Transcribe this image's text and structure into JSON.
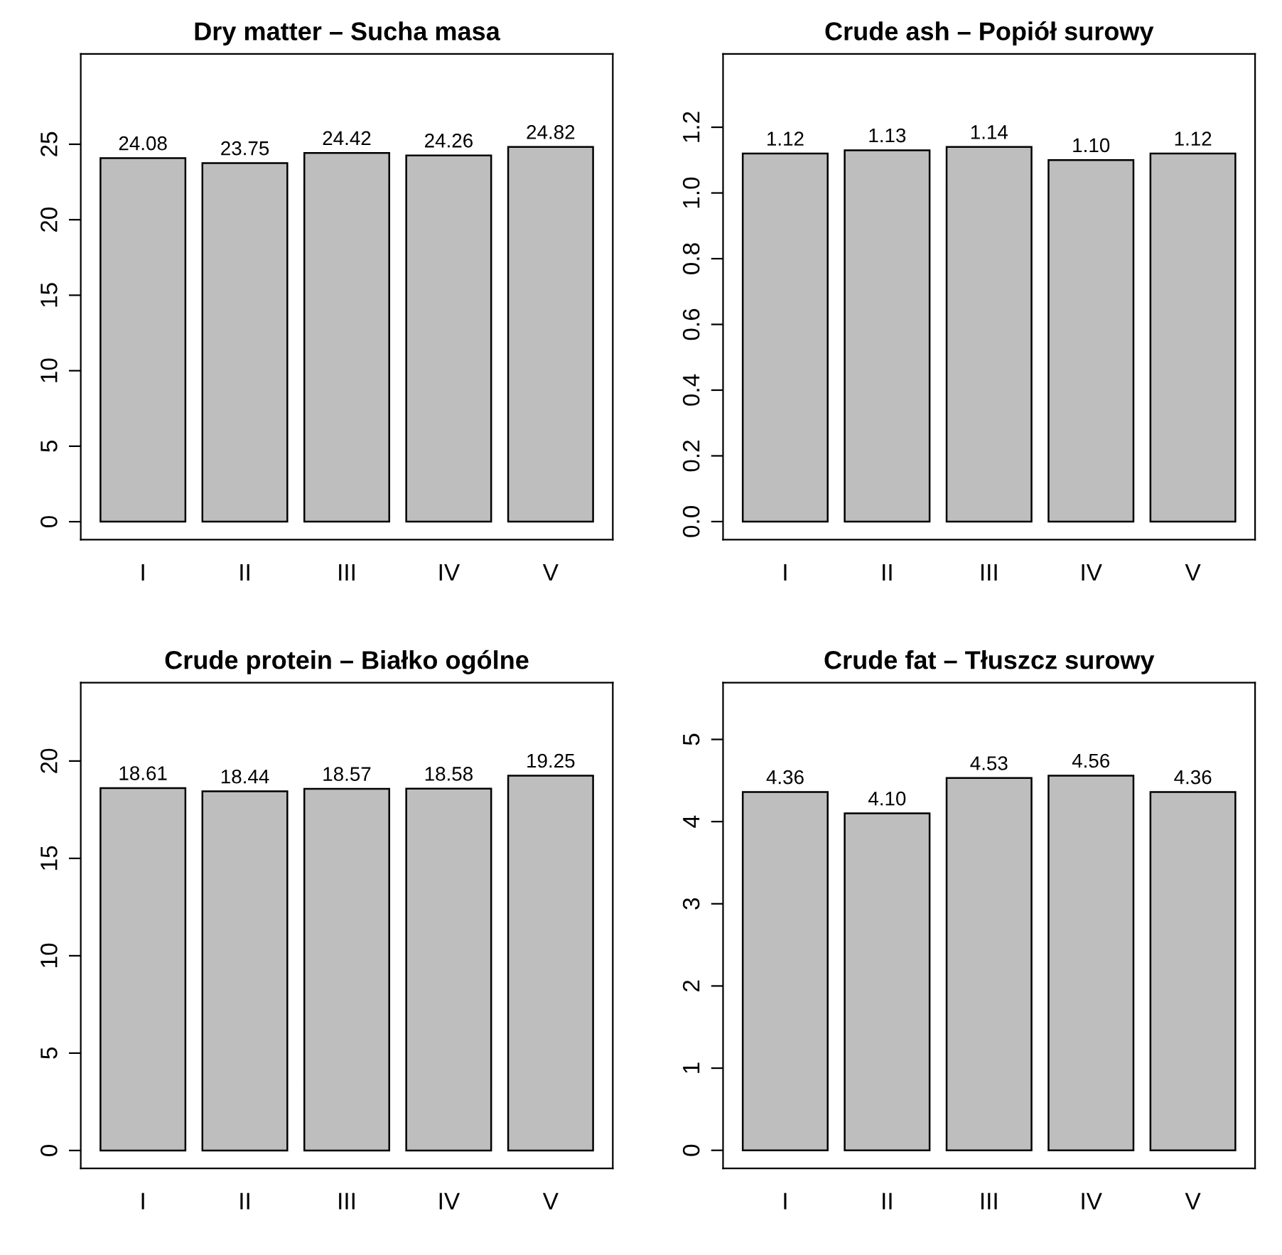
{
  "chart_data": [
    {
      "type": "bar",
      "title": "Dry matter – Sucha masa",
      "categories": [
        "I",
        "II",
        "III",
        "IV",
        "V"
      ],
      "values": [
        24.08,
        23.75,
        24.42,
        24.26,
        24.82
      ],
      "value_labels": [
        "24.08",
        "23.75",
        "24.42",
        "24.26",
        "24.82"
      ],
      "color": "#bebebe",
      "ylim": [
        -1.19,
        30.98
      ],
      "yticks": [
        0,
        5,
        10,
        15,
        20,
        25
      ],
      "grid": false,
      "legend": false
    },
    {
      "type": "bar",
      "title": "Crude ash – Popiół surowy",
      "categories": [
        "I",
        "II",
        "III",
        "IV",
        "V"
      ],
      "values": [
        1.12,
        1.13,
        1.14,
        1.1,
        1.12
      ],
      "value_labels": [
        "1.12",
        "1.13",
        "1.14",
        "1.10",
        "1.12"
      ],
      "color": "#bebebe",
      "ylim": [
        -0.055,
        1.423
      ],
      "yticks": [
        {
          "value": 0,
          "label": "0.0"
        },
        {
          "value": 0.2,
          "label": "0.2"
        },
        {
          "value": 0.4,
          "label": "0.4"
        },
        {
          "value": 0.6,
          "label": "0.6"
        },
        {
          "value": 0.8,
          "label": "0.8"
        },
        {
          "value": 1.0,
          "label": "1.0"
        },
        {
          "value": 1.2,
          "label": "1.2"
        }
      ],
      "grid": false,
      "legend": false
    },
    {
      "type": "bar",
      "title": "Crude protein – Białko ogólne",
      "categories": [
        "I",
        "II",
        "III",
        "IV",
        "V"
      ],
      "values": [
        18.61,
        18.44,
        18.57,
        18.58,
        19.25
      ],
      "value_labels": [
        "18.61",
        "18.44",
        "18.57",
        "18.58",
        "19.25"
      ],
      "color": "#bebebe",
      "ylim": [
        -0.92,
        24.02
      ],
      "yticks": [
        0,
        5,
        10,
        15,
        20
      ],
      "grid": false,
      "legend": false
    },
    {
      "type": "bar",
      "title": "Crude fat – Tłuszcz surowy",
      "categories": [
        "I",
        "II",
        "III",
        "IV",
        "V"
      ],
      "values": [
        4.36,
        4.1,
        4.53,
        4.56,
        4.36
      ],
      "value_labels": [
        "4.36",
        "4.10",
        "4.53",
        "4.56",
        "4.36"
      ],
      "color": "#bebebe",
      "ylim": [
        -0.22,
        5.69
      ],
      "yticks": [
        0,
        1,
        2,
        3,
        4,
        5
      ],
      "grid": false,
      "legend": false
    }
  ]
}
